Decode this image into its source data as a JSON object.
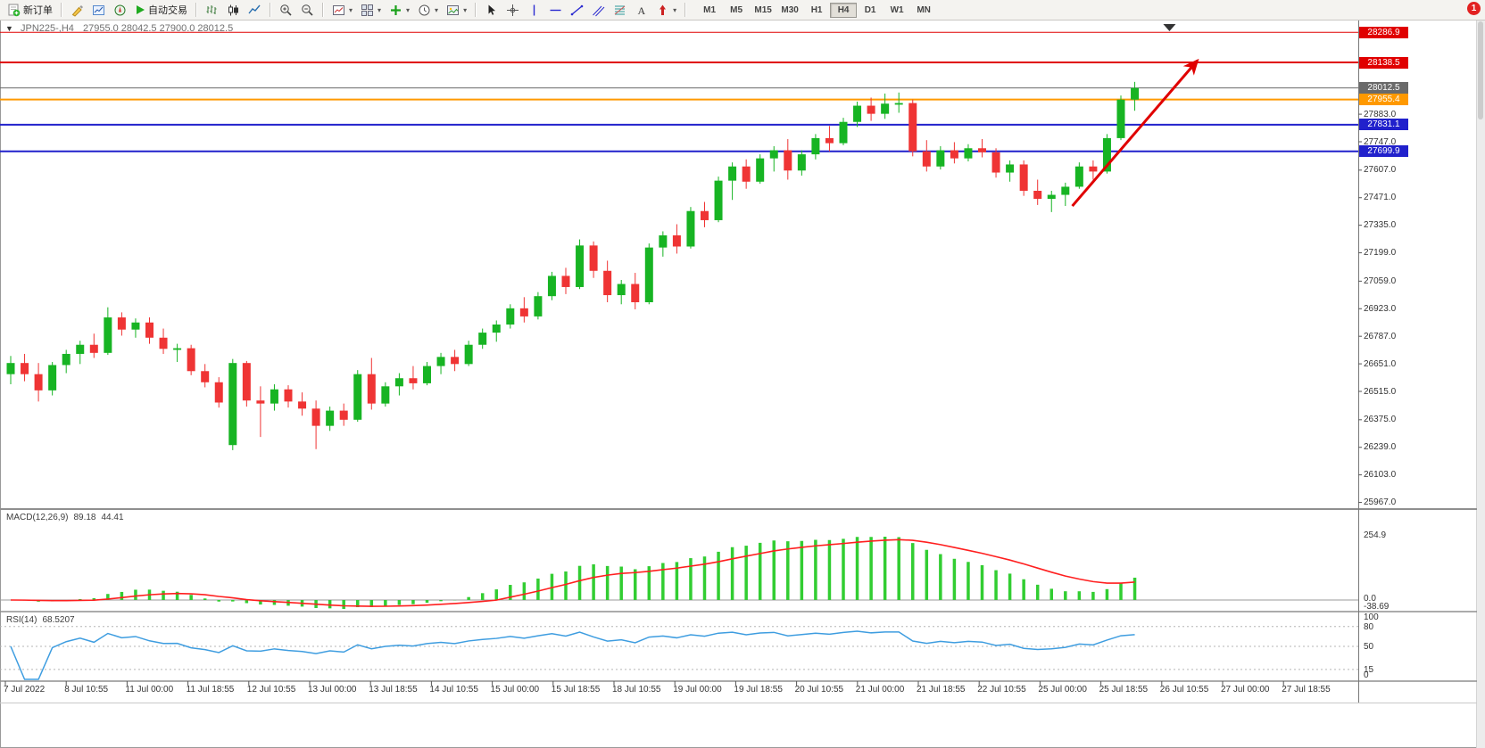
{
  "app": {
    "notification_count": "1"
  },
  "icons": {
    "dropdown_caret": "▾",
    "one_click_arrow": "▼"
  },
  "toolbar": {
    "new_order_label": "新订单",
    "autotrading_label": "自动交易",
    "timeframes": [
      "M1",
      "M5",
      "M15",
      "M30",
      "H1",
      "H4",
      "D1",
      "W1",
      "MN"
    ],
    "active_timeframe": "H4"
  },
  "chart": {
    "title": "JPN225-,H4",
    "ohlc_display": "27955.0 28042.5 27900.0 28012.5",
    "colors": {
      "bull": "#17b423",
      "bear": "#ef3434",
      "macd_hist": "#32CD32",
      "macd_signal": "#ff1f1f",
      "rsi_line": "#3e9de0",
      "arrow": "#e00000"
    }
  },
  "macd": {
    "label": "MACD(12,26,9)",
    "value_main": "89.18",
    "value_signal": "44.41",
    "scale": [
      "254.9",
      "0.0",
      "-38.69"
    ]
  },
  "rsi": {
    "label": "RSI(14)",
    "value": "68.5207",
    "scale": [
      "100",
      "80",
      "50",
      "15",
      "0"
    ],
    "levels": [
      80,
      50,
      15
    ]
  },
  "chart_data": {
    "type": "candlestick",
    "symbol": "JPN225-",
    "timeframe": "H4",
    "title": "JPN225-,H4",
    "current_bar": {
      "open": 27955.0,
      "high": 28042.5,
      "low": 27900.0,
      "close": 28012.5
    },
    "y_range": [
      25930,
      28341
    ],
    "grid": false,
    "chart_shift_marker_bar": 83.5,
    "y_ticks": [
      "27883.0",
      "27747.0",
      "27607.0",
      "27471.0",
      "27335.0",
      "27199.0",
      "27059.0",
      "26923.0",
      "26787.0",
      "26651.0",
      "26515.0",
      "26375.0",
      "26239.0",
      "26103.0",
      "25967.0"
    ],
    "x_labels": [
      "7 Jul 2022",
      "8 Jul 10:55",
      "11 Jul 00:00",
      "11 Jul 18:55",
      "12 Jul 10:55",
      "13 Jul 00:00",
      "13 Jul 18:55",
      "14 Jul 10:55",
      "15 Jul 00:00",
      "15 Jul 18:55",
      "18 Jul 10:55",
      "19 Jul 00:00",
      "19 Jul 18:55",
      "20 Jul 10:55",
      "21 Jul 00:00",
      "21 Jul 18:55",
      "22 Jul 10:55",
      "25 Jul 00:00",
      "25 Jul 18:55",
      "26 Jul 10:55",
      "27 Jul 00:00",
      "27 Jul 18:55"
    ],
    "levels": [
      {
        "label": "28286.9",
        "price": 28286.9,
        "color": "#e00000",
        "width": 1,
        "role": "resistance"
      },
      {
        "label": "28138.5",
        "price": 28138.5,
        "color": "#e00000",
        "width": 2,
        "role": "resistance"
      },
      {
        "label": "28012.5",
        "price": 28012.5,
        "color": "#6a6a6a",
        "width": 1,
        "role": "bid"
      },
      {
        "label": "27955.4",
        "price": 27955.4,
        "color": "#ff9900",
        "width": 2,
        "role": "order"
      },
      {
        "label": "27831.1",
        "price": 27831.1,
        "color": "#2121cc",
        "width": 2,
        "role": "support"
      },
      {
        "label": "27699.9",
        "price": 27699.9,
        "color": "#2121cc",
        "width": 2,
        "role": "support"
      }
    ],
    "annotations": [
      {
        "type": "trend-arrow",
        "color": "#e00000",
        "from": {
          "bar": 76.5,
          "price": 27430
        },
        "to": {
          "bar": 85.5,
          "price": 28147
        }
      }
    ],
    "indicators": [
      {
        "name": "MACD",
        "params": [
          12,
          26,
          9
        ],
        "values_display": [
          89.18,
          44.41
        ],
        "scale": [
          254.9,
          0.0,
          -38.69
        ]
      },
      {
        "name": "RSI",
        "params": [
          14
        ],
        "value_display": 68.5207,
        "levels": [
          80,
          50,
          15
        ]
      }
    ],
    "candles": [
      [
        26600,
        26690,
        26550,
        26655
      ],
      [
        26655,
        26700,
        26565,
        26600
      ],
      [
        26600,
        26655,
        26465,
        26520
      ],
      [
        26520,
        26660,
        26495,
        26645
      ],
      [
        26645,
        26720,
        26605,
        26700
      ],
      [
        26700,
        26765,
        26650,
        26745
      ],
      [
        26745,
        26800,
        26680,
        26705
      ],
      [
        26705,
        26930,
        26695,
        26880
      ],
      [
        26880,
        26905,
        26790,
        26820
      ],
      [
        26820,
        26875,
        26780,
        26855
      ],
      [
        26855,
        26880,
        26750,
        26780
      ],
      [
        26780,
        26825,
        26700,
        26725
      ],
      [
        26720,
        26750,
        26660,
        26728
      ],
      [
        26728,
        26745,
        26595,
        26615
      ],
      [
        26615,
        26650,
        26535,
        26560
      ],
      [
        26560,
        26585,
        26435,
        26460
      ],
      [
        26250,
        26675,
        26225,
        26655
      ],
      [
        26655,
        26665,
        26440,
        26470
      ],
      [
        26470,
        26540,
        26290,
        26455
      ],
      [
        26455,
        26550,
        26420,
        26525
      ],
      [
        26525,
        26545,
        26435,
        26465
      ],
      [
        26465,
        26510,
        26395,
        26430
      ],
      [
        26430,
        26470,
        26230,
        26345
      ],
      [
        26345,
        26440,
        26320,
        26420
      ],
      [
        26420,
        26455,
        26345,
        26375
      ],
      [
        26375,
        26620,
        26365,
        26600
      ],
      [
        26600,
        26680,
        26425,
        26455
      ],
      [
        26455,
        26560,
        26440,
        26540
      ],
      [
        26540,
        26605,
        26495,
        26580
      ],
      [
        26580,
        26640,
        26525,
        26555
      ],
      [
        26555,
        26660,
        26545,
        26640
      ],
      [
        26640,
        26705,
        26600,
        26685
      ],
      [
        26685,
        26720,
        26615,
        26650
      ],
      [
        26650,
        26765,
        26640,
        26745
      ],
      [
        26745,
        26825,
        26725,
        26805
      ],
      [
        26805,
        26865,
        26760,
        26845
      ],
      [
        26845,
        26945,
        26825,
        26925
      ],
      [
        26925,
        26980,
        26855,
        26885
      ],
      [
        26885,
        27005,
        26870,
        26985
      ],
      [
        26985,
        27105,
        26965,
        27085
      ],
      [
        27085,
        27125,
        26995,
        27030
      ],
      [
        27030,
        27265,
        27020,
        27235
      ],
      [
        27235,
        27255,
        27075,
        27110
      ],
      [
        27110,
        27160,
        26955,
        26990
      ],
      [
        26990,
        27065,
        26945,
        27045
      ],
      [
        27045,
        27100,
        26920,
        26955
      ],
      [
        26955,
        27245,
        26945,
        27225
      ],
      [
        27225,
        27305,
        27180,
        27285
      ],
      [
        27285,
        27340,
        27195,
        27230
      ],
      [
        27230,
        27425,
        27220,
        27405
      ],
      [
        27405,
        27450,
        27325,
        27360
      ],
      [
        27360,
        27575,
        27350,
        27555
      ],
      [
        27555,
        27645,
        27460,
        27625
      ],
      [
        27625,
        27660,
        27515,
        27550
      ],
      [
        27550,
        27685,
        27540,
        27665
      ],
      [
        27665,
        27725,
        27600,
        27705
      ],
      [
        27705,
        27760,
        27560,
        27605
      ],
      [
        27605,
        27705,
        27580,
        27685
      ],
      [
        27685,
        27785,
        27660,
        27765
      ],
      [
        27765,
        27825,
        27700,
        27740
      ],
      [
        27740,
        27865,
        27730,
        27845
      ],
      [
        27845,
        27945,
        27820,
        27925
      ],
      [
        27925,
        27965,
        27850,
        27885
      ],
      [
        27885,
        27985,
        27860,
        27935
      ],
      [
        27930,
        27990,
        27890,
        27938
      ],
      [
        27938,
        27955,
        27675,
        27700
      ],
      [
        27700,
        27755,
        27600,
        27625
      ],
      [
        27625,
        27725,
        27610,
        27705
      ],
      [
        27705,
        27745,
        27640,
        27665
      ],
      [
        27665,
        27735,
        27650,
        27715
      ],
      [
        27715,
        27760,
        27670,
        27695
      ],
      [
        27695,
        27715,
        27570,
        27595
      ],
      [
        27595,
        27655,
        27550,
        27635
      ],
      [
        27635,
        27655,
        27480,
        27505
      ],
      [
        27505,
        27560,
        27435,
        27465
      ],
      [
        27465,
        27505,
        27400,
        27485
      ],
      [
        27485,
        27545,
        27430,
        27525
      ],
      [
        27525,
        27645,
        27515,
        27625
      ],
      [
        27625,
        27655,
        27560,
        27600
      ],
      [
        27600,
        27785,
        27590,
        27765
      ],
      [
        27765,
        27975,
        27755,
        27955
      ],
      [
        27955,
        28042.5,
        27900,
        28012.5
      ]
    ]
  }
}
